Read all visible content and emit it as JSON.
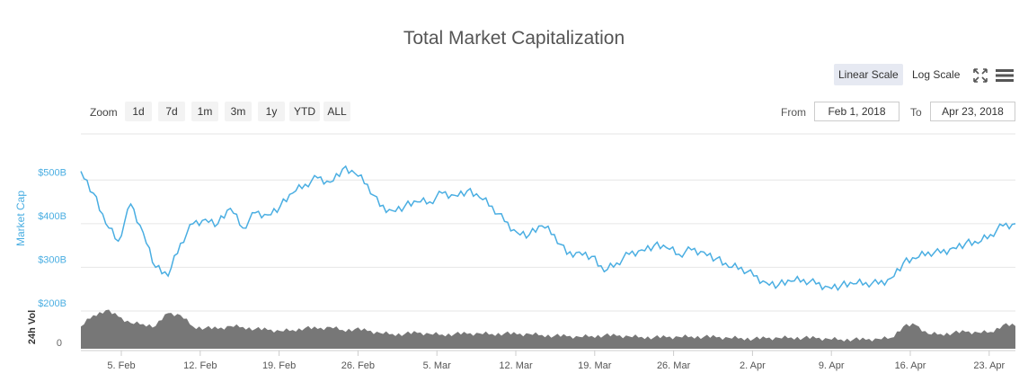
{
  "chart_data": {
    "type": "area",
    "title": "Total Market Capitalization",
    "series": [
      {
        "name": "Market Cap",
        "unit": "B USD",
        "values": [
          520,
          470,
          400,
          360,
          445,
          380,
          300,
          280,
          355,
          400,
          410,
          400,
          435,
          390,
          425,
          420,
          440,
          470,
          490,
          505,
          495,
          525,
          515,
          490,
          440,
          430,
          440,
          450,
          450,
          470,
          465,
          475,
          460,
          440,
          405,
          380,
          375,
          395,
          375,
          330,
          335,
          325,
          290,
          310,
          330,
          340,
          350,
          345,
          330,
          340,
          335,
          320,
          300,
          300,
          280,
          265,
          260,
          268,
          272,
          262,
          255,
          258,
          262,
          265,
          262,
          275,
          310,
          320,
          335,
          333,
          345,
          355,
          355,
          375,
          395,
          400
        ]
      },
      {
        "name": "24h Vol",
        "unit": "relative",
        "values": [
          45,
          68,
          78,
          65,
          52,
          50,
          46,
          72,
          68,
          45,
          42,
          40,
          46,
          44,
          40,
          38,
          36,
          38,
          42,
          40,
          44,
          38,
          40,
          36,
          32,
          30,
          30,
          32,
          30,
          29,
          30,
          30,
          31,
          30,
          31,
          29,
          30,
          28,
          26,
          25,
          24,
          26,
          27,
          26,
          25,
          24,
          23,
          23,
          24,
          25,
          24,
          23,
          22,
          22,
          20,
          21,
          22,
          23,
          22,
          21,
          20,
          19,
          19,
          18,
          20,
          22,
          45,
          48,
          30,
          30,
          32,
          34,
          33,
          34,
          48,
          46
        ]
      }
    ],
    "x_range_dates": [
      "Feb 1, 2018",
      "Apr 23, 2018"
    ],
    "x_tick_labels": [
      "5. Feb",
      "12. Feb",
      "19. Feb",
      "26. Feb",
      "5. Mar",
      "12. Mar",
      "19. Mar",
      "26. Mar",
      "2. Apr",
      "9. Apr",
      "16. Apr",
      "23. Apr"
    ],
    "y_tick_labels": [
      "$500B",
      "$400B",
      "$300B",
      "$200B"
    ],
    "y_tick_values": [
      500,
      400,
      300,
      200
    ],
    "ylim": [
      200,
      550
    ],
    "ylabel": "Market Cap",
    "vol_label": "24h Vol",
    "vol_tick_label": "0",
    "line_color": "#4aaee2",
    "vol_color": "#777777",
    "axis_label_color": "#4aaee2"
  },
  "toolbar": {
    "linear_scale": "Linear Scale",
    "log_scale": "Log Scale",
    "zoom_label": "Zoom",
    "zoom_buttons": [
      "1d",
      "7d",
      "1m",
      "3m",
      "1y",
      "YTD",
      "ALL"
    ],
    "from_label": "From",
    "from_value": "Feb 1, 2018",
    "to_label": "To",
    "to_value": "Apr 23, 2018"
  },
  "icons": {
    "fullscreen": "fullscreen-icon",
    "menu": "hamburger-menu-icon"
  }
}
